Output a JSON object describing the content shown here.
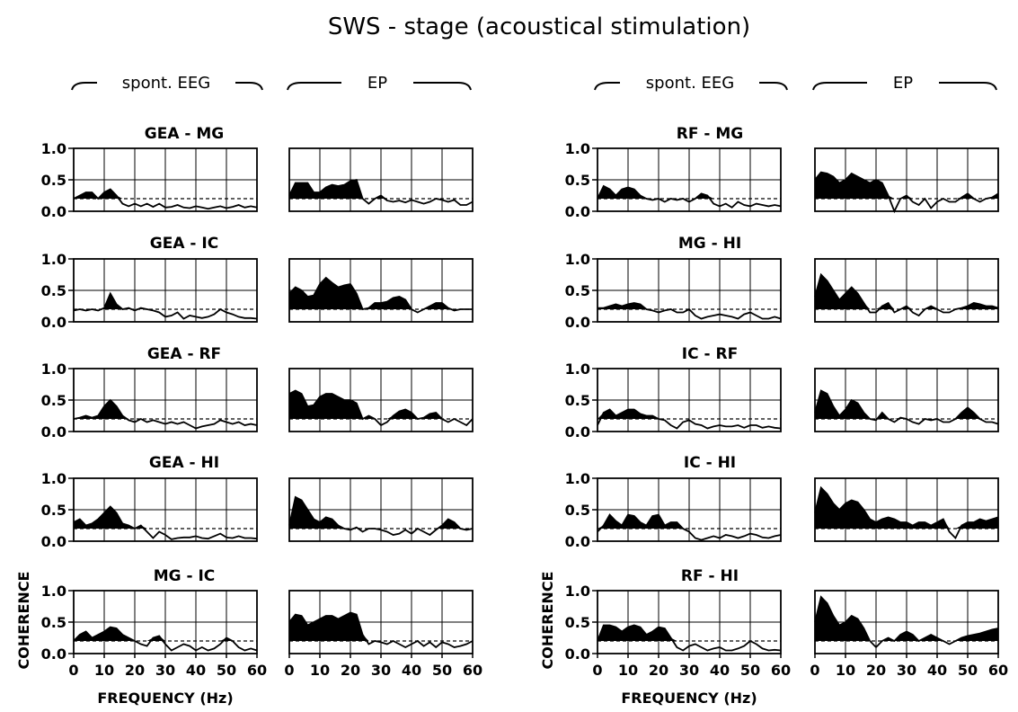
{
  "title": "SWS - stage  (acoustical stimulation)",
  "column_headers": {
    "spont": "spont. EEG",
    "ep": "EP"
  },
  "axis": {
    "ylabel": "COHERENCE",
    "xlabel": "FREQUENCY (Hz)",
    "xticks": [
      "0",
      "10",
      "20",
      "30",
      "40",
      "50",
      "60"
    ],
    "yticks": [
      "0.0",
      "0.5",
      "1.0"
    ]
  },
  "colors": {
    "ink": "#000000",
    "background": "#ffffff"
  },
  "chart_data": {
    "type": "line",
    "xlabel": "FREQUENCY (Hz)",
    "ylabel": "COHERENCE",
    "xlim": [
      0,
      60
    ],
    "ylim": [
      0,
      1
    ],
    "x": [
      0,
      2,
      4,
      6,
      8,
      10,
      12,
      14,
      16,
      18,
      20,
      22,
      24,
      26,
      28,
      30,
      32,
      34,
      36,
      38,
      40,
      42,
      44,
      46,
      48,
      50,
      52,
      54,
      56,
      58,
      60
    ],
    "significance_threshold": 0.2,
    "threshold_style": "dashed",
    "area_above_threshold": "filled black",
    "grid": true,
    "panels": [
      {
        "group": "left",
        "pair": "GEA - MG",
        "series": [
          {
            "condition": "spont. EEG",
            "values": [
              0.2,
              0.25,
              0.3,
              0.3,
              0.2,
              0.3,
              0.35,
              0.25,
              0.12,
              0.08,
              0.12,
              0.08,
              0.12,
              0.07,
              0.12,
              0.06,
              0.07,
              0.1,
              0.06,
              0.05,
              0.08,
              0.06,
              0.04,
              0.06,
              0.08,
              0.05,
              0.07,
              0.1,
              0.06,
              0.08,
              0.06
            ]
          },
          {
            "condition": "EP",
            "values": [
              0.25,
              0.45,
              0.45,
              0.45,
              0.3,
              0.3,
              0.38,
              0.42,
              0.4,
              0.42,
              0.48,
              0.5,
              0.2,
              0.12,
              0.2,
              0.25,
              0.17,
              0.15,
              0.17,
              0.14,
              0.18,
              0.15,
              0.12,
              0.15,
              0.2,
              0.18,
              0.15,
              0.18,
              0.1,
              0.1,
              0.15
            ]
          }
        ]
      },
      {
        "group": "left",
        "pair": "GEA - IC",
        "series": [
          {
            "condition": "spont. EEG",
            "values": [
              0.18,
              0.2,
              0.18,
              0.2,
              0.18,
              0.22,
              0.45,
              0.28,
              0.2,
              0.22,
              0.18,
              0.22,
              0.2,
              0.18,
              0.15,
              0.08,
              0.1,
              0.15,
              0.05,
              0.1,
              0.08,
              0.06,
              0.08,
              0.12,
              0.2,
              0.15,
              0.12,
              0.08,
              0.06,
              0.06,
              0.05
            ]
          },
          {
            "condition": "EP",
            "values": [
              0.45,
              0.55,
              0.5,
              0.4,
              0.42,
              0.6,
              0.7,
              0.62,
              0.55,
              0.58,
              0.6,
              0.45,
              0.2,
              0.22,
              0.3,
              0.3,
              0.32,
              0.38,
              0.4,
              0.35,
              0.2,
              0.15,
              0.2,
              0.25,
              0.3,
              0.3,
              0.22,
              0.18,
              0.2,
              0.2,
              0.2
            ]
          }
        ]
      },
      {
        "group": "left",
        "pair": "GEA - RF",
        "series": [
          {
            "condition": "spont. EEG",
            "values": [
              0.2,
              0.22,
              0.25,
              0.22,
              0.25,
              0.4,
              0.5,
              0.4,
              0.25,
              0.18,
              0.15,
              0.2,
              0.15,
              0.18,
              0.15,
              0.12,
              0.15,
              0.12,
              0.15,
              0.1,
              0.05,
              0.08,
              0.1,
              0.12,
              0.18,
              0.15,
              0.12,
              0.15,
              0.1,
              0.12,
              0.1
            ]
          },
          {
            "condition": "EP",
            "values": [
              0.6,
              0.65,
              0.6,
              0.4,
              0.42,
              0.55,
              0.6,
              0.6,
              0.55,
              0.5,
              0.5,
              0.45,
              0.2,
              0.25,
              0.2,
              0.1,
              0.15,
              0.25,
              0.32,
              0.35,
              0.3,
              0.2,
              0.22,
              0.28,
              0.3,
              0.2,
              0.15,
              0.2,
              0.15,
              0.1,
              0.2
            ]
          }
        ]
      },
      {
        "group": "left",
        "pair": "GEA - HI",
        "series": [
          {
            "condition": "spont. EEG",
            "values": [
              0.3,
              0.35,
              0.25,
              0.28,
              0.35,
              0.45,
              0.55,
              0.45,
              0.28,
              0.25,
              0.2,
              0.25,
              0.15,
              0.05,
              0.15,
              0.1,
              0.03,
              0.05,
              0.06,
              0.06,
              0.08,
              0.05,
              0.04,
              0.08,
              0.12,
              0.06,
              0.05,
              0.08,
              0.05,
              0.05,
              0.04
            ]
          },
          {
            "condition": "EP",
            "values": [
              0.25,
              0.7,
              0.65,
              0.5,
              0.35,
              0.3,
              0.38,
              0.35,
              0.25,
              0.2,
              0.18,
              0.22,
              0.15,
              0.2,
              0.2,
              0.18,
              0.15,
              0.1,
              0.12,
              0.18,
              0.12,
              0.2,
              0.15,
              0.1,
              0.18,
              0.25,
              0.35,
              0.3,
              0.2,
              0.18,
              0.2
            ]
          }
        ]
      },
      {
        "group": "left",
        "pair": "MG - IC",
        "series": [
          {
            "condition": "spont. EEG",
            "values": [
              0.2,
              0.3,
              0.35,
              0.25,
              0.3,
              0.35,
              0.42,
              0.4,
              0.3,
              0.25,
              0.2,
              0.15,
              0.12,
              0.25,
              0.28,
              0.15,
              0.05,
              0.1,
              0.15,
              0.12,
              0.05,
              0.1,
              0.05,
              0.08,
              0.15,
              0.25,
              0.2,
              0.1,
              0.05,
              0.08,
              0.05
            ]
          },
          {
            "condition": "EP",
            "values": [
              0.5,
              0.62,
              0.6,
              0.45,
              0.5,
              0.55,
              0.6,
              0.6,
              0.55,
              0.6,
              0.65,
              0.62,
              0.3,
              0.15,
              0.2,
              0.18,
              0.15,
              0.2,
              0.15,
              0.1,
              0.15,
              0.2,
              0.12,
              0.18,
              0.1,
              0.18,
              0.15,
              0.1,
              0.12,
              0.15,
              0.2
            ]
          }
        ]
      },
      {
        "group": "right",
        "pair": "RF - MG",
        "series": [
          {
            "condition": "spont. EEG",
            "values": [
              0.2,
              0.4,
              0.35,
              0.25,
              0.35,
              0.38,
              0.35,
              0.25,
              0.2,
              0.18,
              0.2,
              0.15,
              0.2,
              0.18,
              0.2,
              0.15,
              0.2,
              0.28,
              0.25,
              0.12,
              0.08,
              0.12,
              0.06,
              0.15,
              0.1,
              0.08,
              0.12,
              0.1,
              0.08,
              0.1,
              0.08
            ]
          },
          {
            "condition": "EP",
            "values": [
              0.5,
              0.62,
              0.6,
              0.55,
              0.45,
              0.5,
              0.6,
              0.55,
              0.5,
              0.45,
              0.5,
              0.45,
              0.25,
              0.0,
              0.2,
              0.25,
              0.15,
              0.1,
              0.2,
              0.05,
              0.15,
              0.2,
              0.15,
              0.15,
              0.22,
              0.28,
              0.2,
              0.15,
              0.2,
              0.22,
              0.28
            ]
          }
        ]
      },
      {
        "group": "right",
        "pair": "MG - HI",
        "series": [
          {
            "condition": "spont. EEG",
            "values": [
              0.22,
              0.22,
              0.25,
              0.28,
              0.25,
              0.28,
              0.3,
              0.28,
              0.2,
              0.18,
              0.15,
              0.18,
              0.2,
              0.15,
              0.15,
              0.2,
              0.1,
              0.05,
              0.08,
              0.1,
              0.12,
              0.1,
              0.08,
              0.05,
              0.12,
              0.15,
              0.1,
              0.05,
              0.05,
              0.08,
              0.05
            ]
          },
          {
            "condition": "EP",
            "values": [
              0.4,
              0.75,
              0.65,
              0.5,
              0.35,
              0.45,
              0.55,
              0.45,
              0.3,
              0.15,
              0.15,
              0.25,
              0.3,
              0.15,
              0.2,
              0.25,
              0.15,
              0.1,
              0.2,
              0.25,
              0.2,
              0.15,
              0.15,
              0.2,
              0.22,
              0.25,
              0.3,
              0.28,
              0.25,
              0.25,
              0.22
            ]
          }
        ]
      },
      {
        "group": "right",
        "pair": "IC - RF",
        "series": [
          {
            "condition": "spont. EEG",
            "values": [
              0.1,
              0.3,
              0.35,
              0.25,
              0.3,
              0.35,
              0.35,
              0.28,
              0.25,
              0.25,
              0.2,
              0.18,
              0.1,
              0.05,
              0.15,
              0.18,
              0.12,
              0.1,
              0.05,
              0.08,
              0.1,
              0.08,
              0.08,
              0.1,
              0.06,
              0.1,
              0.1,
              0.06,
              0.08,
              0.06,
              0.05
            ]
          },
          {
            "condition": "EP",
            "values": [
              0.3,
              0.65,
              0.6,
              0.4,
              0.25,
              0.35,
              0.5,
              0.45,
              0.3,
              0.2,
              0.18,
              0.3,
              0.2,
              0.15,
              0.22,
              0.2,
              0.15,
              0.12,
              0.2,
              0.18,
              0.2,
              0.15,
              0.15,
              0.2,
              0.3,
              0.38,
              0.3,
              0.2,
              0.15,
              0.15,
              0.12
            ]
          }
        ]
      },
      {
        "group": "right",
        "pair": "IC - HI",
        "series": [
          {
            "condition": "spont. EEG",
            "values": [
              0.15,
              0.25,
              0.42,
              0.32,
              0.25,
              0.42,
              0.4,
              0.3,
              0.25,
              0.4,
              0.42,
              0.25,
              0.3,
              0.3,
              0.2,
              0.15,
              0.05,
              0.02,
              0.05,
              0.08,
              0.05,
              0.1,
              0.08,
              0.05,
              0.08,
              0.12,
              0.1,
              0.06,
              0.05,
              0.08,
              0.1
            ]
          },
          {
            "condition": "EP",
            "values": [
              0.45,
              0.85,
              0.75,
              0.6,
              0.5,
              0.6,
              0.65,
              0.62,
              0.5,
              0.35,
              0.3,
              0.35,
              0.38,
              0.35,
              0.3,
              0.3,
              0.25,
              0.3,
              0.3,
              0.25,
              0.3,
              0.35,
              0.15,
              0.05,
              0.25,
              0.3,
              0.3,
              0.35,
              0.32,
              0.35,
              0.38
            ]
          }
        ]
      },
      {
        "group": "right",
        "pair": "RF - HI",
        "series": [
          {
            "condition": "spont. EEG",
            "values": [
              0.2,
              0.45,
              0.45,
              0.42,
              0.35,
              0.42,
              0.45,
              0.42,
              0.3,
              0.35,
              0.42,
              0.4,
              0.25,
              0.1,
              0.05,
              0.12,
              0.15,
              0.1,
              0.05,
              0.08,
              0.1,
              0.05,
              0.05,
              0.08,
              0.12,
              0.2,
              0.15,
              0.08,
              0.05,
              0.06,
              0.05
            ]
          },
          {
            "condition": "EP",
            "values": [
              0.5,
              0.9,
              0.8,
              0.6,
              0.45,
              0.5,
              0.6,
              0.55,
              0.4,
              0.2,
              0.1,
              0.2,
              0.25,
              0.2,
              0.3,
              0.35,
              0.3,
              0.2,
              0.25,
              0.3,
              0.25,
              0.2,
              0.15,
              0.2,
              0.25,
              0.28,
              0.3,
              0.32,
              0.35,
              0.38,
              0.4
            ]
          }
        ]
      }
    ]
  }
}
